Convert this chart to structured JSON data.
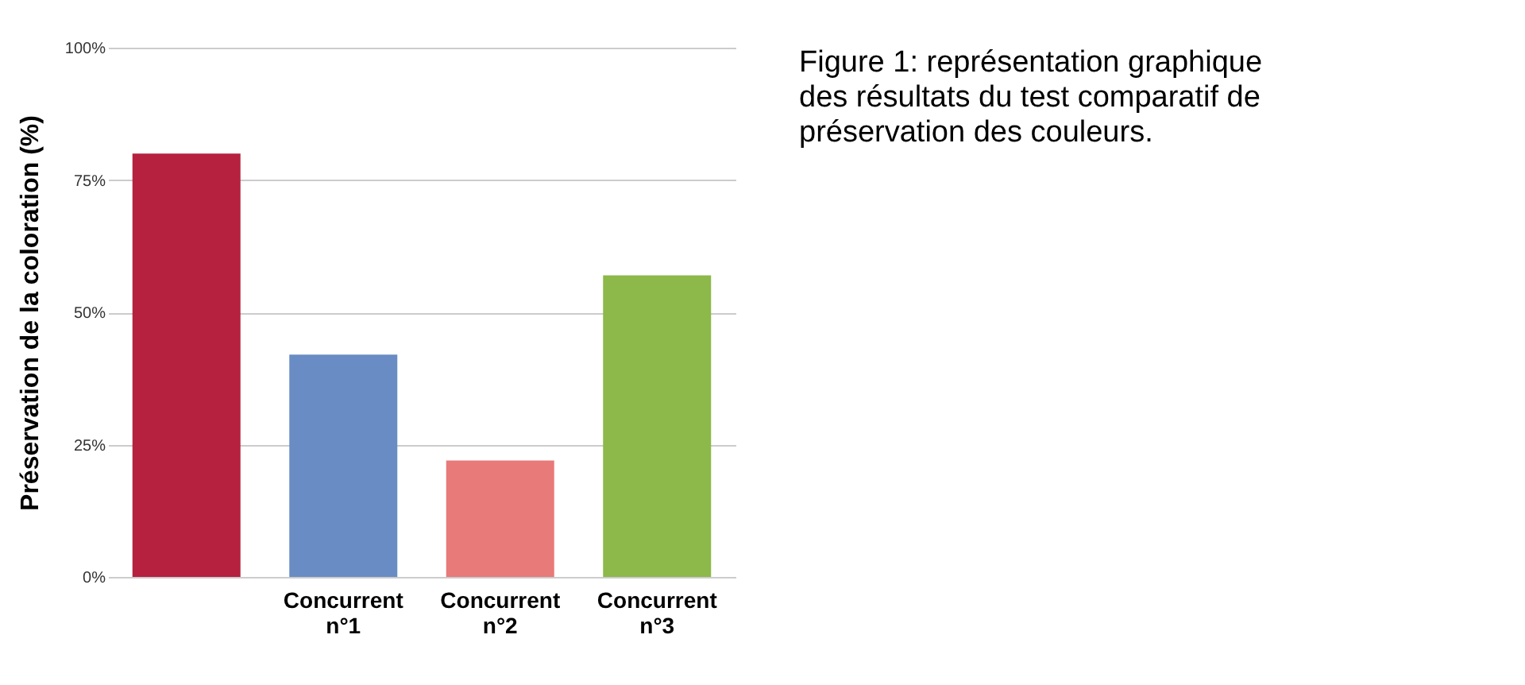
{
  "chart_data": {
    "type": "bar",
    "ylabel": "Préservation de la coloration (%)",
    "categories": [
      null,
      "Concurrent n°1",
      "Concurrent n°2",
      "Concurrent n°3"
    ],
    "values": [
      80,
      42,
      22,
      57
    ],
    "colors": [
      "#b5213f",
      "#6a8cc4",
      "#e87a7a",
      "#8db84a"
    ],
    "ylim": [
      0,
      100
    ],
    "yticks": [
      {
        "value": 0,
        "label": "0%"
      },
      {
        "value": 25,
        "label": "25%"
      },
      {
        "value": 50,
        "label": "50%"
      },
      {
        "value": 75,
        "label": "75%"
      },
      {
        "value": 100,
        "label": "100%"
      }
    ],
    "grid": "y",
    "annotations": [
      "Figure 1: représentation graphique des résultats du test comparatif de préservation des couleurs."
    ]
  }
}
